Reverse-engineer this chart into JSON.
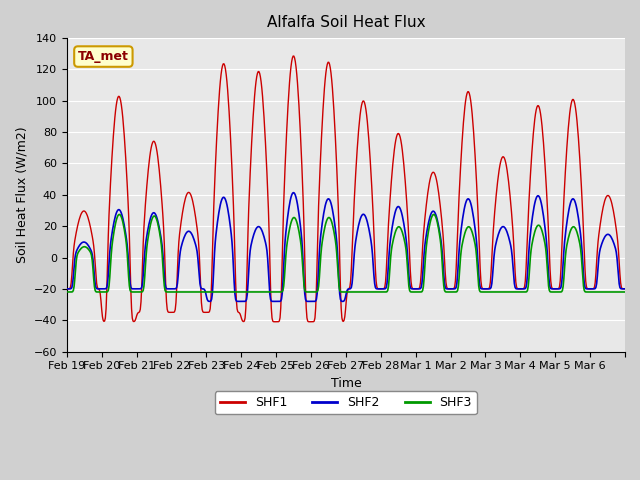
{
  "title": "Alfalfa Soil Heat Flux",
  "xlabel": "Time",
  "ylabel": "Soil Heat Flux (W/m2)",
  "ylim": [
    -60,
    140
  ],
  "yticks": [
    -60,
    -40,
    -20,
    0,
    20,
    40,
    60,
    80,
    100,
    120,
    140
  ],
  "background_color": "#e8e8e8",
  "plot_bg_color": "#e8e8e8",
  "line_colors": {
    "SHF1": "#cc0000",
    "SHF2": "#0000cc",
    "SHF3": "#009900"
  },
  "legend_label": "TA_met",
  "legend_bg": "#ffffcc",
  "legend_border": "#cc9900",
  "num_days": 16,
  "start_day": 0,
  "points_per_day": 48
}
